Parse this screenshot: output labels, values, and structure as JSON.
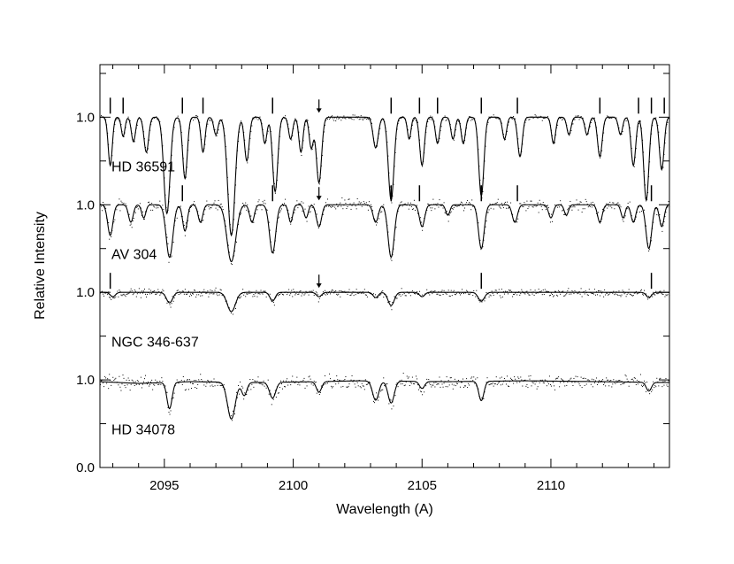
{
  "chart_data": {
    "type": "line",
    "title": "",
    "xlabel": "Wavelength (A)",
    "ylabel": "Relative Intensity",
    "xlim": [
      2092.5,
      2114.6
    ],
    "ylim": [
      0.0,
      4.6
    ],
    "x_ticks": [
      {
        "value": 2095,
        "label": "2095"
      },
      {
        "value": 2100,
        "label": "2100"
      },
      {
        "value": 2105,
        "label": "2105"
      },
      {
        "value": 2110,
        "label": "2110"
      }
    ],
    "y_ticks": [
      {
        "value": 0.0,
        "label": "0.0"
      },
      {
        "value": 1.0,
        "label": "1.0"
      },
      {
        "value": 2.0,
        "label": "1.0"
      },
      {
        "value": 3.0,
        "label": "1.0"
      },
      {
        "value": 4.0,
        "label": "1.0"
      }
    ],
    "grid": false,
    "series": [
      {
        "name": "HD 36591",
        "offset": 4.0,
        "noise": 0.012,
        "continuum_points": [
          [
            2092.5,
            1.0
          ],
          [
            2114.6,
            1.0
          ]
        ],
        "features": [
          [
            2092.9,
            0.55,
            0.08
          ],
          [
            2093.4,
            0.22,
            0.07
          ],
          [
            2093.8,
            0.28,
            0.08
          ],
          [
            2094.3,
            0.4,
            0.09
          ],
          [
            2095.1,
            1.1,
            0.12
          ],
          [
            2095.8,
            0.7,
            0.09
          ],
          [
            2096.5,
            0.4,
            0.08
          ],
          [
            2097.0,
            0.2,
            0.08
          ],
          [
            2097.6,
            1.35,
            0.14
          ],
          [
            2098.2,
            0.5,
            0.09
          ],
          [
            2098.9,
            0.3,
            0.08
          ],
          [
            2099.3,
            0.85,
            0.1
          ],
          [
            2099.9,
            0.25,
            0.08
          ],
          [
            2100.3,
            0.4,
            0.08
          ],
          [
            2100.7,
            0.35,
            0.08
          ],
          [
            2101.0,
            0.75,
            0.1
          ],
          [
            2103.2,
            0.35,
            0.1
          ],
          [
            2103.8,
            0.95,
            0.11
          ],
          [
            2104.5,
            0.25,
            0.07
          ],
          [
            2105.0,
            0.55,
            0.09
          ],
          [
            2105.6,
            0.3,
            0.08
          ],
          [
            2106.2,
            0.25,
            0.08
          ],
          [
            2106.6,
            0.3,
            0.08
          ],
          [
            2107.3,
            0.9,
            0.1
          ],
          [
            2108.2,
            0.25,
            0.08
          ],
          [
            2108.8,
            0.45,
            0.09
          ],
          [
            2110.1,
            0.3,
            0.08
          ],
          [
            2110.7,
            0.2,
            0.08
          ],
          [
            2111.4,
            0.2,
            0.08
          ],
          [
            2111.9,
            0.45,
            0.09
          ],
          [
            2112.7,
            0.2,
            0.08
          ],
          [
            2113.2,
            0.55,
            0.09
          ],
          [
            2113.7,
            0.95,
            0.1
          ],
          [
            2114.3,
            0.6,
            0.09
          ]
        ],
        "tick_marks": [
          2092.9,
          2093.4,
          2095.7,
          2096.5,
          2099.2,
          2103.8,
          2104.9,
          2105.6,
          2107.3,
          2108.7,
          2111.9,
          2113.4,
          2113.9,
          2114.4
        ],
        "arrow": 2101.0
      },
      {
        "name": "AV 304",
        "offset": 3.0,
        "noise": 0.03,
        "continuum_points": [
          [
            2092.5,
            1.0
          ],
          [
            2114.6,
            1.0
          ]
        ],
        "features": [
          [
            2092.9,
            0.35,
            0.1
          ],
          [
            2093.7,
            0.2,
            0.09
          ],
          [
            2094.2,
            0.15,
            0.08
          ],
          [
            2095.2,
            0.6,
            0.13
          ],
          [
            2095.8,
            0.3,
            0.09
          ],
          [
            2096.4,
            0.2,
            0.09
          ],
          [
            2097.6,
            0.65,
            0.17
          ],
          [
            2098.4,
            0.2,
            0.09
          ],
          [
            2099.2,
            0.55,
            0.12
          ],
          [
            2099.9,
            0.2,
            0.08
          ],
          [
            2100.5,
            0.15,
            0.08
          ],
          [
            2101.0,
            0.25,
            0.1
          ],
          [
            2103.2,
            0.2,
            0.1
          ],
          [
            2103.8,
            0.6,
            0.12
          ],
          [
            2105.0,
            0.25,
            0.1
          ],
          [
            2106.0,
            0.12,
            0.08
          ],
          [
            2107.3,
            0.5,
            0.11
          ],
          [
            2108.6,
            0.2,
            0.1
          ],
          [
            2110.0,
            0.15,
            0.09
          ],
          [
            2110.6,
            0.12,
            0.08
          ],
          [
            2111.9,
            0.2,
            0.09
          ],
          [
            2112.8,
            0.15,
            0.08
          ],
          [
            2113.2,
            0.2,
            0.09
          ],
          [
            2113.8,
            0.5,
            0.11
          ],
          [
            2114.3,
            0.25,
            0.09
          ]
        ],
        "tick_marks": [
          2095.7,
          2099.2,
          2103.8,
          2104.9,
          2107.3,
          2108.7,
          2113.9
        ],
        "arrow": 2101.0
      },
      {
        "name": "NGC 346-637",
        "offset": 2.0,
        "noise": 0.02,
        "continuum_points": [
          [
            2092.5,
            1.0
          ],
          [
            2114.6,
            1.0
          ]
        ],
        "features": [
          [
            2093.0,
            0.05,
            0.1
          ],
          [
            2095.2,
            0.12,
            0.12
          ],
          [
            2097.6,
            0.22,
            0.16
          ],
          [
            2099.2,
            0.1,
            0.1
          ],
          [
            2101.0,
            0.05,
            0.1
          ],
          [
            2103.2,
            0.06,
            0.1
          ],
          [
            2103.8,
            0.15,
            0.12
          ],
          [
            2105.0,
            0.05,
            0.1
          ],
          [
            2107.3,
            0.1,
            0.12
          ],
          [
            2113.8,
            0.06,
            0.1
          ]
        ],
        "tick_marks": [
          2092.9,
          2107.3,
          2113.9
        ],
        "arrow": 2101.0
      },
      {
        "name": "HD 34078",
        "offset": 1.0,
        "noise": 0.035,
        "continuum_points": [
          [
            2092.5,
            0.98
          ],
          [
            2094.0,
            0.96
          ],
          [
            2096.0,
            0.98
          ],
          [
            2098.5,
            0.97
          ],
          [
            2101.0,
            0.98
          ],
          [
            2102.5,
            0.99
          ],
          [
            2106.0,
            0.98
          ],
          [
            2109.0,
            0.99
          ],
          [
            2112.0,
            0.98
          ],
          [
            2114.6,
            0.97
          ]
        ],
        "features": [
          [
            2095.2,
            0.3,
            0.1
          ],
          [
            2097.6,
            0.42,
            0.15
          ],
          [
            2098.1,
            0.15,
            0.1
          ],
          [
            2099.2,
            0.18,
            0.12
          ],
          [
            2101.0,
            0.12,
            0.1
          ],
          [
            2103.2,
            0.22,
            0.12
          ],
          [
            2103.8,
            0.25,
            0.12
          ],
          [
            2105.0,
            0.08,
            0.1
          ],
          [
            2107.3,
            0.22,
            0.1
          ],
          [
            2113.8,
            0.1,
            0.1
          ]
        ],
        "tick_marks": [],
        "arrow": null
      }
    ]
  }
}
